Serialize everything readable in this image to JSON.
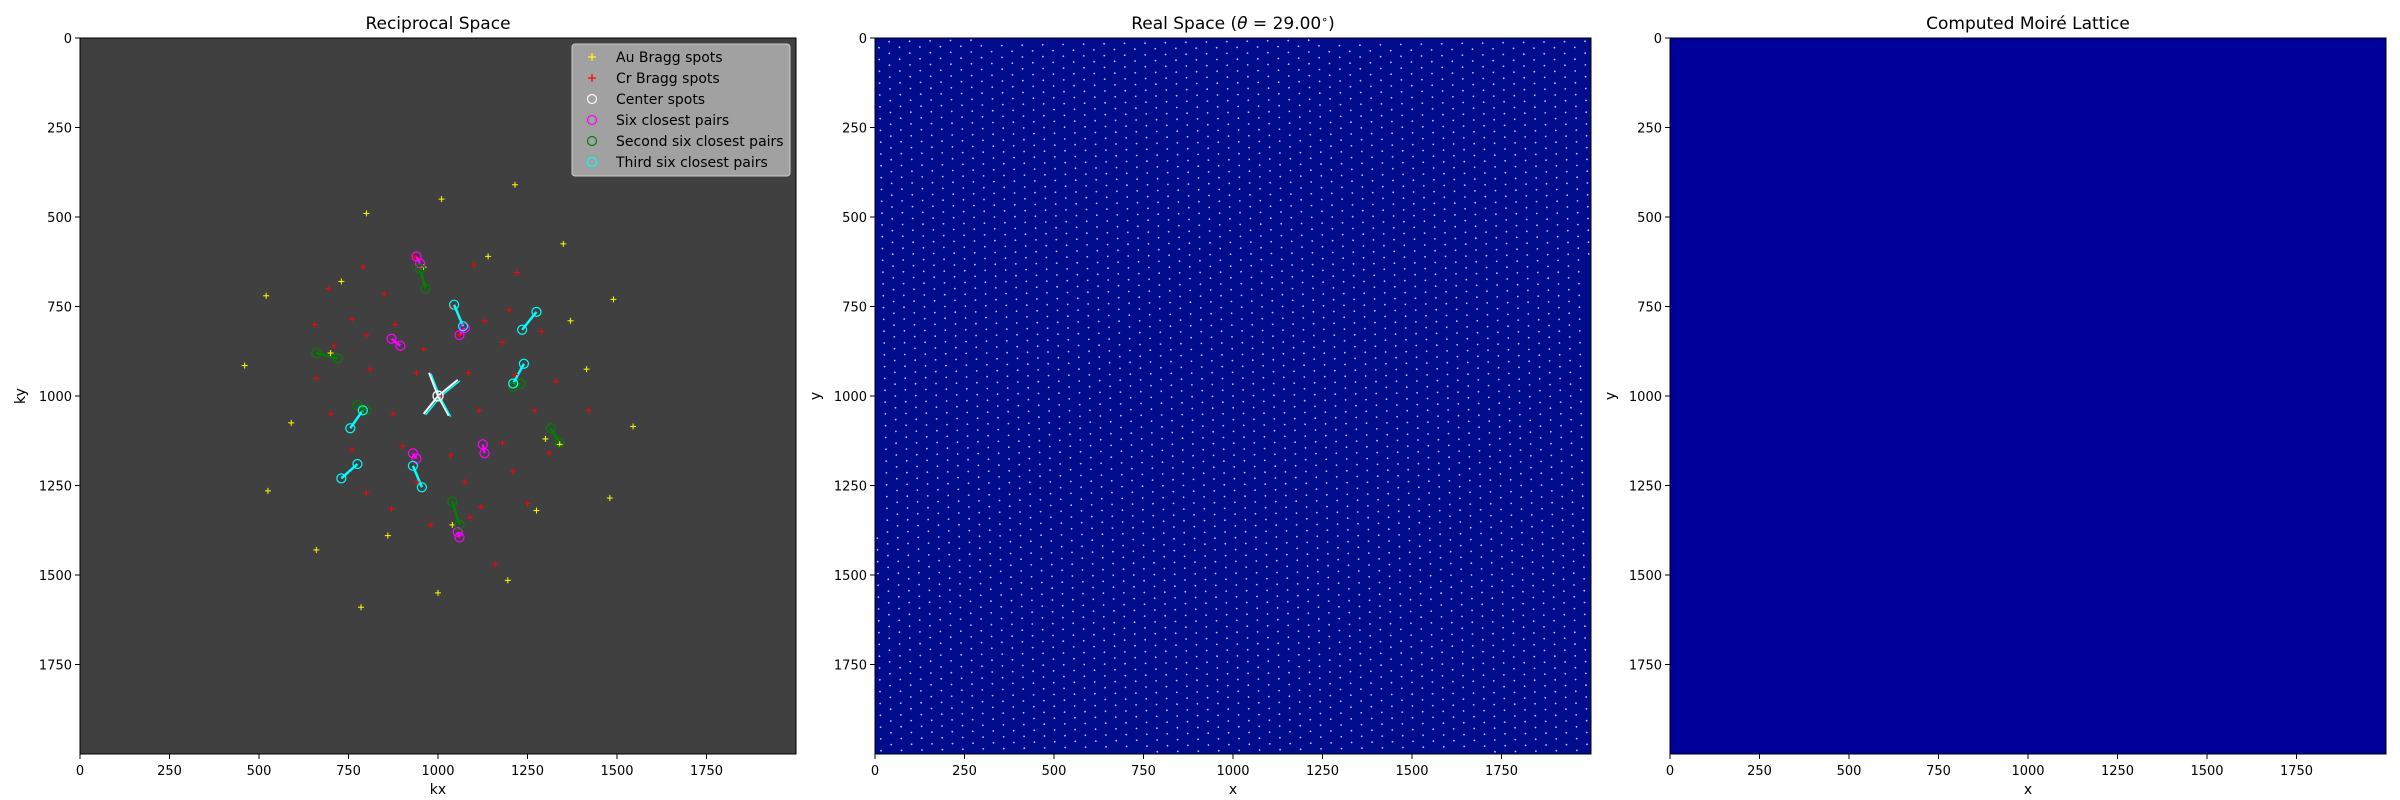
{
  "chart_data": [
    {
      "type": "scatter",
      "title": "Reciprocal Space",
      "xlabel": "kx",
      "ylabel": "ky",
      "xlim": [
        0,
        2000
      ],
      "ylim": [
        2000,
        0
      ],
      "x_ticks": [
        "0",
        "250",
        "500",
        "750",
        "1000",
        "1250",
        "1500",
        "1750"
      ],
      "y_ticks": [
        "0",
        "250",
        "500",
        "750",
        "1000",
        "1250",
        "1500",
        "1750"
      ],
      "x_tick_values": [
        0,
        250,
        500,
        750,
        1000,
        1250,
        1500,
        1750
      ],
      "y_tick_values": [
        0,
        250,
        500,
        750,
        1000,
        1250,
        1500,
        1750
      ],
      "background": "#404040",
      "legend_position": "top-right",
      "legend": [
        {
          "label": "Au Bragg spots",
          "color": "#ffff00",
          "marker": "plus"
        },
        {
          "label": "Cr Bragg spots",
          "color": "#ff0000",
          "marker": "plus"
        },
        {
          "label": "Center spots",
          "color": "#ffffff",
          "marker": "circle"
        },
        {
          "label": "Six closest pairs",
          "color": "#ff00ff",
          "marker": "circle"
        },
        {
          "label": "Second six closest pairs",
          "color": "#008000",
          "marker": "circle"
        },
        {
          "label": "Third six closest pairs",
          "color": "#00ffff",
          "marker": "circle"
        }
      ],
      "series": [
        {
          "name": "Au Bragg spots",
          "color": "#ffff00",
          "points": [
            [
              1010,
              450
            ],
            [
              1215,
              410
            ],
            [
              800,
              490
            ],
            [
              1350,
              575
            ],
            [
              520,
              720
            ],
            [
              730,
              680
            ],
            [
              1140,
              610
            ],
            [
              1490,
              730
            ],
            [
              1370,
              790
            ],
            [
              460,
              915
            ],
            [
              1415,
              925
            ],
            [
              590,
              1075
            ],
            [
              1545,
              1085
            ],
            [
              1340,
              1135
            ],
            [
              525,
              1265
            ],
            [
              1480,
              1285
            ],
            [
              1275,
              1320
            ],
            [
              860,
              1390
            ],
            [
              660,
              1430
            ],
            [
              1195,
              1515
            ],
            [
              1000,
              1550
            ],
            [
              785,
              1590
            ],
            [
              960,
              640
            ],
            [
              1040,
              1360
            ],
            [
              700,
              880
            ],
            [
              1300,
              1120
            ]
          ]
        },
        {
          "name": "Cr Bragg spots",
          "color": "#ff0000",
          "points": [
            [
              790,
              640
            ],
            [
              935,
              610
            ],
            [
              1100,
              635
            ],
            [
              1220,
              655
            ],
            [
              695,
              700
            ],
            [
              850,
              715
            ],
            [
              1035,
              750
            ],
            [
              1200,
              760
            ],
            [
              655,
              800
            ],
            [
              760,
              785
            ],
            [
              880,
              800
            ],
            [
              1130,
              790
            ],
            [
              1290,
              820
            ],
            [
              710,
              860
            ],
            [
              800,
              830
            ],
            [
              960,
              870
            ],
            [
              1060,
              830
            ],
            [
              1180,
              850
            ],
            [
              660,
              950
            ],
            [
              810,
              925
            ],
            [
              940,
              935
            ],
            [
              1085,
              935
            ],
            [
              1215,
              940
            ],
            [
              1330,
              960
            ],
            [
              700,
              1050
            ],
            [
              875,
              1050
            ],
            [
              1010,
              1000
            ],
            [
              1115,
              1040
            ],
            [
              1270,
              1040
            ],
            [
              1420,
              1040
            ],
            [
              760,
              1150
            ],
            [
              900,
              1140
            ],
            [
              1035,
              1165
            ],
            [
              1180,
              1130
            ],
            [
              1310,
              1160
            ],
            [
              800,
              1270
            ],
            [
              940,
              1240
            ],
            [
              1075,
              1240
            ],
            [
              1210,
              1210
            ],
            [
              870,
              1315
            ],
            [
              980,
              1360
            ],
            [
              1120,
              1310
            ],
            [
              1250,
              1300
            ],
            [
              1160,
              1470
            ],
            [
              1090,
              1340
            ]
          ]
        },
        {
          "name": "Center spots",
          "color": "#ffffff",
          "points": [
            [
              1000,
              1000
            ]
          ]
        },
        {
          "name": "Six closest pairs",
          "color": "#ff00ff",
          "points": [
            [
              940,
              610
            ],
            [
              950,
              630
            ],
            [
              870,
              840
            ],
            [
              895,
              860
            ],
            [
              1060,
              830
            ],
            [
              1075,
              810
            ],
            [
              1125,
              1135
            ],
            [
              1130,
              1160
            ],
            [
              930,
              1160
            ],
            [
              940,
              1175
            ],
            [
              1055,
              1380
            ],
            [
              1060,
              1395
            ]
          ]
        },
        {
          "name": "Second six closest pairs",
          "color": "#008000",
          "points": [
            [
              660,
              880
            ],
            [
              720,
              895
            ],
            [
              950,
              645
            ],
            [
              965,
              700
            ],
            [
              1315,
              1090
            ],
            [
              1340,
              1130
            ],
            [
              1040,
              1295
            ],
            [
              1060,
              1360
            ],
            [
              775,
              1025
            ],
            [
              800,
              1040
            ],
            [
              1210,
              975
            ],
            [
              1230,
              965
            ]
          ]
        },
        {
          "name": "Third six closest pairs",
          "color": "#00ffff",
          "points": [
            [
              1045,
              745
            ],
            [
              1070,
              805
            ],
            [
              1235,
              815
            ],
            [
              1275,
              765
            ],
            [
              1240,
              910
            ],
            [
              1210,
              965
            ],
            [
              790,
              1040
            ],
            [
              755,
              1090
            ],
            [
              775,
              1190
            ],
            [
              730,
              1230
            ],
            [
              930,
              1195
            ],
            [
              955,
              1255
            ]
          ]
        }
      ],
      "pair_links": {
        "magenta": [
          [
            [
              940,
              610
            ],
            [
              950,
              630
            ]
          ],
          [
            [
              870,
              840
            ],
            [
              895,
              860
            ]
          ],
          [
            [
              1060,
              830
            ],
            [
              1075,
              810
            ]
          ],
          [
            [
              1125,
              1135
            ],
            [
              1130,
              1160
            ]
          ],
          [
            [
              930,
              1160
            ],
            [
              940,
              1175
            ]
          ],
          [
            [
              1055,
              1380
            ],
            [
              1060,
              1395
            ]
          ]
        ],
        "green": [
          [
            [
              660,
              880
            ],
            [
              720,
              895
            ]
          ],
          [
            [
              950,
              645
            ],
            [
              965,
              700
            ]
          ],
          [
            [
              1315,
              1090
            ],
            [
              1340,
              1130
            ]
          ],
          [
            [
              1040,
              1295
            ],
            [
              1060,
              1360
            ]
          ],
          [
            [
              775,
              1025
            ],
            [
              800,
              1040
            ]
          ],
          [
            [
              1210,
              975
            ],
            [
              1230,
              965
            ]
          ]
        ],
        "cyan": [
          [
            [
              1045,
              745
            ],
            [
              1070,
              805
            ]
          ],
          [
            [
              1235,
              815
            ],
            [
              1275,
              765
            ]
          ],
          [
            [
              1240,
              910
            ],
            [
              1210,
              965
            ]
          ],
          [
            [
              790,
              1040
            ],
            [
              755,
              1090
            ]
          ],
          [
            [
              775,
              1190
            ],
            [
              730,
              1230
            ]
          ],
          [
            [
              930,
              1195
            ],
            [
              955,
              1255
            ]
          ]
        ],
        "center_vectors": [
          [
            [
              1000,
              1000
            ],
            [
              975,
              935
            ]
          ],
          [
            [
              1000,
              1000
            ],
            [
              1055,
              955
            ]
          ],
          [
            [
              1000,
              1000
            ],
            [
              960,
              1050
            ]
          ],
          [
            [
              1000,
              1000
            ],
            [
              1030,
              1055
            ]
          ]
        ]
      }
    },
    {
      "type": "heatmap",
      "title": "Real Space (θ = 29.00°)",
      "title_prefix": "Real Space (",
      "title_theta": "θ",
      "title_eq": " = 29.00",
      "title_deg": "∘",
      "title_suffix": ")",
      "xlabel": "x",
      "ylabel": "y",
      "xlim": [
        0,
        2000
      ],
      "ylim": [
        2000,
        0
      ],
      "x_ticks": [
        "0",
        "250",
        "500",
        "750",
        "1000",
        "1250",
        "1500",
        "1750"
      ],
      "y_ticks": [
        "0",
        "250",
        "500",
        "750",
        "1000",
        "1250",
        "1500",
        "1750"
      ],
      "x_tick_values": [
        0,
        250,
        500,
        750,
        1000,
        1250,
        1500,
        1750
      ],
      "y_tick_values": [
        0,
        250,
        500,
        750,
        1000,
        1250,
        1500,
        1750
      ],
      "background": "#000c8c",
      "dot_color": "#b8c4ff",
      "lattice_spacing": 33,
      "lattice_angle_deg": 29
    },
    {
      "type": "heatmap",
      "title": "Computed Moiré Lattice",
      "xlabel": "x",
      "ylabel": "y",
      "xlim": [
        0,
        2000
      ],
      "ylim": [
        2000,
        0
      ],
      "x_ticks": [
        "0",
        "250",
        "500",
        "750",
        "1000",
        "1250",
        "1500",
        "1750"
      ],
      "y_ticks": [
        "0",
        "250",
        "500",
        "750",
        "1000",
        "1250",
        "1500",
        "1750"
      ],
      "x_tick_values": [
        0,
        250,
        500,
        750,
        1000,
        1250,
        1500,
        1750
      ],
      "y_tick_values": [
        0,
        250,
        500,
        750,
        1000,
        1250,
        1500,
        1750
      ],
      "background": "#00009a"
    }
  ]
}
